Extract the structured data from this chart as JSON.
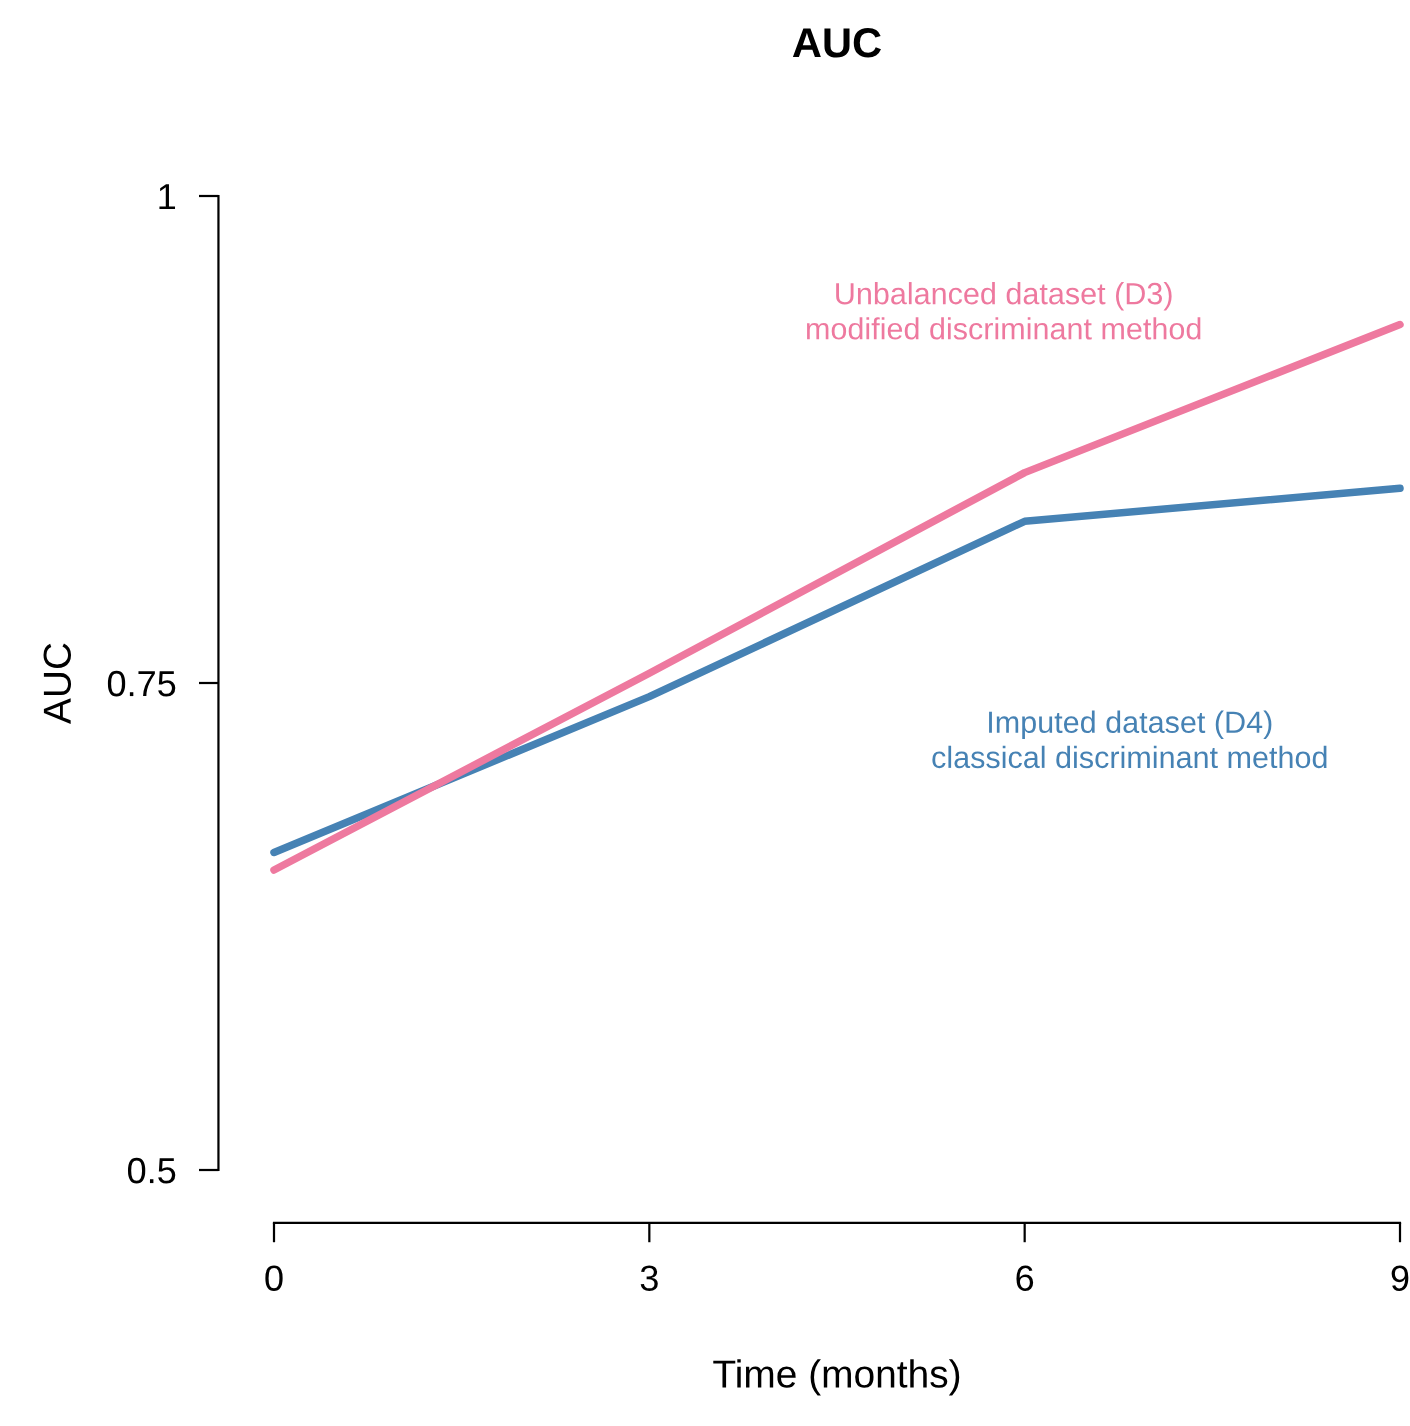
{
  "chart_data": {
    "type": "line",
    "title": "AUC",
    "xlabel": "Time (months)",
    "ylabel": "AUC",
    "x": [
      0,
      3,
      6,
      9
    ],
    "series": [
      {
        "name": "Imputed dataset (D4)\nclassical discriminant method",
        "color": "#4682b4",
        "values": [
          0.663,
          0.743,
          0.833,
          0.85
        ]
      },
      {
        "name": "Unbalanced dataset (D3)\nmodified discriminant method",
        "color": "#ee799f",
        "values": [
          0.654,
          0.755,
          0.858,
          0.934
        ]
      }
    ],
    "xlim": [
      0,
      9
    ],
    "ylim": [
      0.5,
      1
    ],
    "xticks": [
      0,
      3,
      6,
      9
    ],
    "yticks": [
      0.5,
      0.75,
      {
        "value": 1,
        "label": "1"
      }
    ],
    "grid": false,
    "legend": false,
    "marker": "none",
    "line_style": "solid"
  }
}
